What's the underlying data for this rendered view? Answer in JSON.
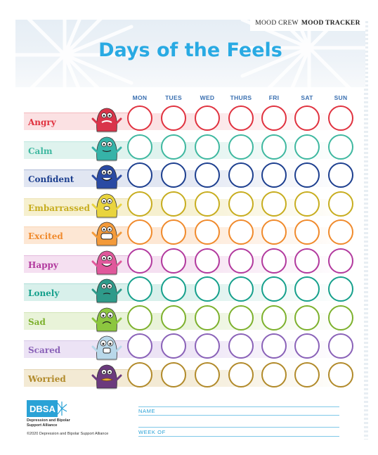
{
  "header": {
    "series": "MOOD CREW",
    "tracker": "MOOD TRACKER",
    "title": "Days of the Feels"
  },
  "days": [
    "MON",
    "TUES",
    "WED",
    "THURS",
    "FRI",
    "SAT",
    "SUN"
  ],
  "moods": [
    {
      "label": "Angry",
      "color": "#e0323f",
      "tint": "#fbe1e3",
      "body": "#d9344a",
      "icon": "angry-monster-icon"
    },
    {
      "label": "Calm",
      "color": "#3fb8a0",
      "tint": "#dff3ee",
      "body": "#36b3a8",
      "icon": "calm-monster-icon"
    },
    {
      "label": "Confident",
      "color": "#1d3f8f",
      "tint": "#e1e6f2",
      "body": "#2a4aa3",
      "icon": "confident-monster-icon"
    },
    {
      "label": "Embarrassed",
      "color": "#c7ad1f",
      "tint": "#f6f0cf",
      "body": "#e9d43e",
      "icon": "embarrassed-monster-icon"
    },
    {
      "label": "Excited",
      "color": "#f08a2c",
      "tint": "#fde7d4",
      "body": "#f39a3a",
      "icon": "excited-monster-icon"
    },
    {
      "label": "Happy",
      "color": "#b23a9e",
      "tint": "#f5e0f1",
      "body": "#e0589b",
      "icon": "happy-monster-icon"
    },
    {
      "label": "Lonely",
      "color": "#16a08c",
      "tint": "#d8f0eb",
      "body": "#2e9a8a",
      "icon": "lonely-monster-icon"
    },
    {
      "label": "Sad",
      "color": "#7db12d",
      "tint": "#e9f3d9",
      "body": "#8cc63f",
      "icon": "sad-monster-icon"
    },
    {
      "label": "Scared",
      "color": "#8a62b8",
      "tint": "#ece3f5",
      "body": "#b9d8ea",
      "icon": "scared-monster-icon"
    },
    {
      "label": "Worried",
      "color": "#b18a2a",
      "tint": "#f3ead4",
      "body": "#6b3a7d",
      "icon": "worried-monster-icon"
    }
  ],
  "footer": {
    "logo_text": "DBSA",
    "org_line1": "Depression and Bipolar",
    "org_line2": "Support Alliance",
    "copyright": "©2020 Depression and Bipolar Support Alliance",
    "name_label": "NAME",
    "week_label": "WEEK OF"
  },
  "colors": {
    "title": "#29aae3",
    "days": "#3a6fb0",
    "accent_line": "#7fc8e8"
  }
}
